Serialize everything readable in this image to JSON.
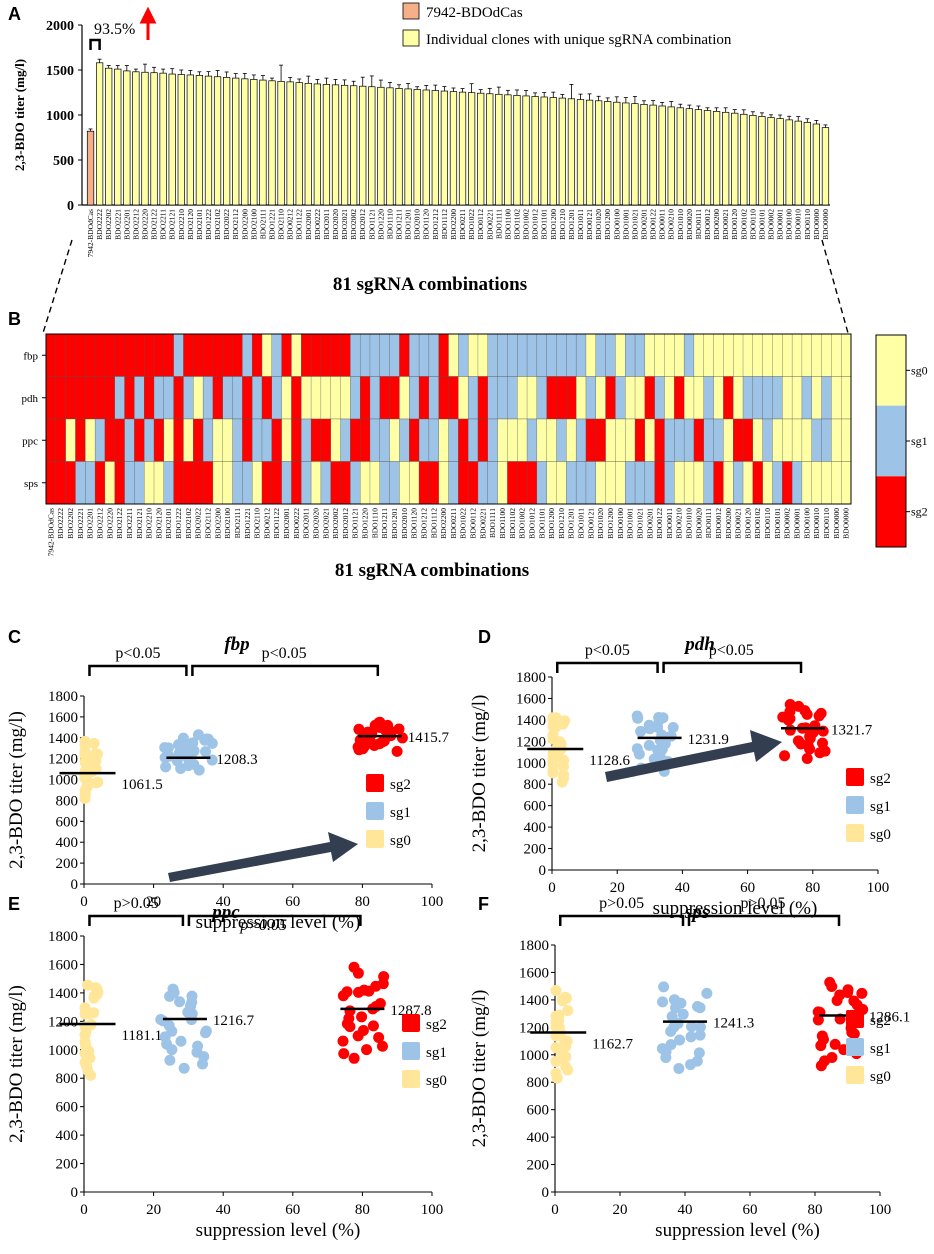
{
  "colors": {
    "control_bar": "#f5b08a",
    "clone_bar": "#ffffa6",
    "sg0": "#ffffa6",
    "sg1": "#9dc3e6",
    "sg2": "#ff0000",
    "dot_sg0": "#ffe699",
    "dot_sg1": "#9dc3e6",
    "dot_sg2": "#ff0000",
    "arrow": "#333f50",
    "up_arrow": "#ff0000"
  },
  "panels": {
    "A": "A",
    "B": "B",
    "C": "C",
    "D": "D",
    "E": "E",
    "F": "F"
  },
  "chart_data": [
    {
      "id": "A",
      "type": "bar",
      "ylabel": "2,3-BDO titer (mg/l)",
      "xlabel": "81 sgRNA combinations",
      "ylim": [
        0,
        2000
      ],
      "yticks": [
        "0",
        "500",
        "1000",
        "1500",
        "2000"
      ],
      "annotation": "93.5%",
      "legend": [
        "7942-BDOdCas",
        "Individual clones with unique sgRNA combination"
      ],
      "categories": [
        "7942-BDOdCas",
        "BDO2222",
        "BDO2202",
        "BDO2221",
        "BDO2201",
        "BDO2212",
        "BDO2220",
        "BDO2122",
        "BDO2211",
        "BDO2121",
        "BDO2210",
        "BDO2120",
        "BDO2101",
        "BDO1222",
        "BDO2102",
        "BDO2022",
        "BDO2112",
        "BDO2200",
        "BDO2100",
        "BDO2111",
        "BDO1221",
        "BDO2110",
        "BDO0212",
        "BDO1122",
        "BDO2001",
        "BDO0222",
        "BDO2011",
        "BDO2020",
        "BDO2021",
        "BDO2002",
        "BDO2012",
        "BDO1121",
        "BDO1220",
        "BDO1110",
        "BDO1211",
        "BDO1201",
        "BDO2010",
        "BDO1120",
        "BDO1212",
        "BDO1112",
        "BDO2200",
        "BDO0211",
        "BDO1022",
        "BDO0112",
        "BDO0221",
        "BDO1111",
        "BDO1100",
        "BDO1102",
        "BDO1002",
        "BDO1012",
        "BDO1101",
        "BDO1200",
        "BDO1210",
        "BDO1201",
        "BDO1011",
        "BDO0121",
        "BDO1020",
        "BDO1200",
        "BDO0100",
        "BDO1001",
        "BDO1021",
        "BDO0201",
        "BDO0122",
        "BDO0011",
        "BDO0210",
        "BDO1010",
        "BDO0020",
        "BDO0111",
        "BDO0012",
        "BDO0200",
        "BDO0021",
        "BDO0120",
        "BDO0102",
        "BDO0110",
        "BDO0101",
        "BDO0002",
        "BDO0001",
        "BDO0100",
        "BDO0010",
        "BDO0110",
        "BDO0000",
        "BDO0000"
      ],
      "values": [
        820,
        1580,
        1520,
        1510,
        1490,
        1480,
        1475,
        1470,
        1465,
        1455,
        1450,
        1445,
        1440,
        1432,
        1425,
        1418,
        1410,
        1402,
        1395,
        1388,
        1380,
        1374,
        1368,
        1360,
        1352,
        1345,
        1340,
        1335,
        1330,
        1325,
        1320,
        1314,
        1308,
        1302,
        1296,
        1290,
        1284,
        1278,
        1272,
        1266,
        1260,
        1254,
        1248,
        1242,
        1236,
        1230,
        1224,
        1218,
        1212,
        1206,
        1200,
        1194,
        1188,
        1180,
        1172,
        1165,
        1158,
        1150,
        1142,
        1134,
        1126,
        1118,
        1110,
        1100,
        1090,
        1080,
        1070,
        1060,
        1050,
        1040,
        1030,
        1020,
        1008,
        996,
        984,
        972,
        960,
        946,
        932,
        918,
        900,
        860
      ],
      "errors": [
        25,
        40,
        30,
        40,
        60,
        30,
        90,
        60,
        45,
        60,
        50,
        50,
        40,
        50,
        70,
        60,
        50,
        60,
        50,
        50,
        30,
        180,
        50,
        40,
        80,
        50,
        70,
        60,
        60,
        50,
        100,
        120,
        80,
        60,
        40,
        60,
        30,
        50,
        60,
        50,
        40,
        40,
        100,
        40,
        60,
        80,
        50,
        60,
        60,
        40,
        50,
        60,
        40,
        160,
        60,
        70,
        50,
        40,
        60,
        60,
        80,
        40,
        50,
        40,
        60,
        40,
        40,
        40,
        30,
        40,
        50,
        40,
        50,
        40,
        40,
        30,
        40,
        40,
        50,
        40,
        40,
        30
      ]
    },
    {
      "id": "B",
      "type": "heatmap",
      "xlabel": "81 sgRNA combinations",
      "rows": [
        "fbp",
        "pdh",
        "ppc",
        "sps"
      ],
      "legend": [
        "sg0",
        "sg1",
        "sg2"
      ],
      "columns": [
        "7942-BDOdCas",
        "BDO2222",
        "BDO2202",
        "BDO2221",
        "BDO2201",
        "BDO2212",
        "BDO2220",
        "BDO2122",
        "BDO2211",
        "BDO2121",
        "BDO2210",
        "BDO2120",
        "BDO2101",
        "BDO1222",
        "BDO2102",
        "BDO2022",
        "BDO2112",
        "BDO2200",
        "BDO2100",
        "BDO2111",
        "BDO1221",
        "BDO2110",
        "BDO0212",
        "BDO1122",
        "BDO2001",
        "BDO0222",
        "BDO2011",
        "BDO2020",
        "BDO2021",
        "BDO2002",
        "BDO2012",
        "BDO1121",
        "BDO1220",
        "BDO1110",
        "BDO1211",
        "BDO1201",
        "BDO2010",
        "BDO1120",
        "BDO1212",
        "BDO1112",
        "BDO2200",
        "BDO0211",
        "BDO1022",
        "BDO0112",
        "BDO0221",
        "BDO1111",
        "BDO1100",
        "BDO1102",
        "BDO1002",
        "BDO1012",
        "BDO1101",
        "BDO1200",
        "BDO1210",
        "BDO1201",
        "BDO1011",
        "BDO0121",
        "BDO1020",
        "BDO1200",
        "BDO0100",
        "BDO1001",
        "BDO1021",
        "BDO0201",
        "BDO0122",
        "BDO0011",
        "BDO0210",
        "BDO1010",
        "BDO0020",
        "BDO0111",
        "BDO0012",
        "BDO0200",
        "BDO0021",
        "BDO0120",
        "BDO0102",
        "BDO0110",
        "BDO0101",
        "BDO0002",
        "BDO0001",
        "BDO0100",
        "BDO0010",
        "BDO0110",
        "BDO0000",
        "BDO0000"
      ]
    },
    {
      "id": "C",
      "type": "scatter",
      "title": "fbp",
      "xlabel": "suppression level (%)",
      "ylabel": "2,3-BDO titer (mg/l)",
      "xlim": [
        0,
        100
      ],
      "ylim": [
        0,
        1800
      ],
      "xticks": [
        "0",
        "20",
        "40",
        "60",
        "80",
        "100"
      ],
      "yticks": [
        "0",
        "200",
        "400",
        "600",
        "800",
        "1000",
        "1200",
        "1400",
        "1600",
        "1800"
      ],
      "groups": [
        {
          "name": "sg0",
          "x": 1,
          "mean": 1061.5,
          "label": "1061.5",
          "min": 820,
          "max": 1390
        },
        {
          "name": "sg1",
          "x": 30,
          "mean": 1208.3,
          "label": "1208.3",
          "min": 1090,
          "max": 1440
        },
        {
          "name": "sg2",
          "x": 85,
          "mean": 1415.7,
          "label": "1415.7",
          "min": 1270,
          "max": 1560
        }
      ],
      "pvalues": [
        "p<0.05",
        "p<0.05"
      ],
      "legend": [
        "sg2",
        "sg1",
        "sg0"
      ],
      "trend_arrow": true
    },
    {
      "id": "D",
      "type": "scatter",
      "title": "pdh",
      "xlabel": "suppression level (%)",
      "ylabel": "2,3-BDO titer (mg/l)",
      "xlim": [
        0,
        100
      ],
      "ylim": [
        0,
        1800
      ],
      "xticks": [
        "0",
        "20",
        "40",
        "60",
        "80",
        "100"
      ],
      "yticks": [
        "0",
        "200",
        "400",
        "600",
        "800",
        "1000",
        "1200",
        "1400",
        "1600",
        "1800"
      ],
      "groups": [
        {
          "name": "sg0",
          "x": 1,
          "mean": 1128.6,
          "label": "1128.6",
          "min": 820,
          "max": 1480
        },
        {
          "name": "sg1",
          "x": 33,
          "mean": 1231.9,
          "label": "1231.9",
          "min": 920,
          "max": 1500
        },
        {
          "name": "sg2",
          "x": 77,
          "mean": 1321.7,
          "label": "1321.7",
          "min": 1040,
          "max": 1590
        }
      ],
      "pvalues": [
        "p<0.05",
        "p<0.05"
      ],
      "legend": [
        "sg2",
        "sg1",
        "sg0"
      ],
      "trend_arrow": true
    },
    {
      "id": "E",
      "type": "scatter",
      "title": "ppc",
      "xlabel": "suppression level (%)",
      "ylabel": "2,3-BDO titer (mg/l)",
      "xlim": [
        0,
        100
      ],
      "ylim": [
        0,
        1800
      ],
      "xticks": [
        "0",
        "20",
        "40",
        "60",
        "80",
        "100"
      ],
      "yticks": [
        "0",
        "200",
        "400",
        "600",
        "800",
        "1000",
        "1200",
        "1400",
        "1600",
        "1800"
      ],
      "groups": [
        {
          "name": "sg0",
          "x": 1,
          "mean": 1181.1,
          "label": "1181.1",
          "min": 820,
          "max": 1530
        },
        {
          "name": "sg1",
          "x": 29,
          "mean": 1216.7,
          "label": "1216.7",
          "min": 870,
          "max": 1480
        },
        {
          "name": "sg2",
          "x": 80,
          "mean": 1287.8,
          "label": "1287.8",
          "min": 940,
          "max": 1600
        }
      ],
      "pvalues": [
        "p>0.05",
        "p>0.05"
      ],
      "legend": [
        "sg2",
        "sg1",
        "sg0"
      ],
      "trend_arrow": false
    },
    {
      "id": "F",
      "type": "scatter",
      "title": "sps",
      "xlabel": "suppression level (%)",
      "ylabel": "2,3-BDO titer (mg/l)",
      "xlim": [
        0,
        100
      ],
      "ylim": [
        0,
        1800
      ],
      "xticks": [
        "0",
        "20",
        "40",
        "60",
        "80",
        "100"
      ],
      "yticks": [
        "0",
        "200",
        "400",
        "600",
        "800",
        "1000",
        "1200",
        "1400",
        "1600",
        "1800"
      ],
      "groups": [
        {
          "name": "sg0",
          "x": 1,
          "mean": 1162.7,
          "label": "1162.7",
          "min": 830,
          "max": 1500
        },
        {
          "name": "sg1",
          "x": 40,
          "mean": 1241.3,
          "label": "1241.3",
          "min": 900,
          "max": 1520
        },
        {
          "name": "sg2",
          "x": 88,
          "mean": 1286.1,
          "label": "1286.1",
          "min": 920,
          "max": 1590
        }
      ],
      "pvalues": [
        "p>0.05",
        "p>0.05"
      ],
      "legend": [
        "sg2",
        "sg1",
        "sg0"
      ],
      "trend_arrow": false
    }
  ]
}
